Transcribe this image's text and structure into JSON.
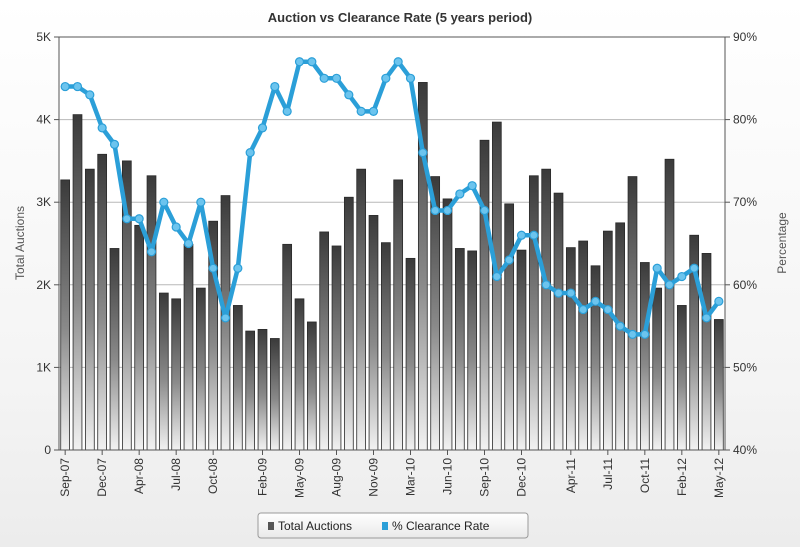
{
  "chart_data": {
    "type": "bar",
    "title": "Auction vs Clearance Rate (5 years period)",
    "ylabel": "Total Auctions",
    "y2label": "Percentage",
    "ylim": [
      0,
      5000
    ],
    "y2lim": [
      40,
      90
    ],
    "y_ticks": [
      "0",
      "1K",
      "2K",
      "3K",
      "4K",
      "5K"
    ],
    "y2_ticks": [
      "40%",
      "50%",
      "60%",
      "70%",
      "80%",
      "90%"
    ],
    "x_tick_labels": [
      "Sep-07",
      "Dec-07",
      "Apr-08",
      "Jul-08",
      "Oct-08",
      "Feb-09",
      "May-09",
      "Aug-09",
      "Nov-09",
      "Mar-10",
      "Jun-10",
      "Sep-10",
      "Dec-10",
      "Apr-11",
      "Jul-11",
      "Oct-11",
      "Feb-12",
      "May-12"
    ],
    "grid": true,
    "legend_position": "bottom",
    "series": [
      {
        "name": "Total Auctions",
        "type": "bar",
        "axis": "left",
        "color": "#555555",
        "values": [
          3270,
          4060,
          3400,
          3580,
          2440,
          3500,
          2720,
          3320,
          1900,
          1830,
          2490,
          1960,
          2770,
          3080,
          1750,
          1440,
          1460,
          1350,
          2490,
          1830,
          1550,
          2640,
          2470,
          3060,
          3400,
          2840,
          2510,
          3270,
          2320,
          4450,
          3310,
          3040,
          2440,
          2410,
          3750,
          3970,
          2980,
          2420,
          3320,
          3400,
          3110,
          2450,
          2530,
          2230,
          2650,
          2750,
          3310,
          2270,
          1960,
          3520,
          1750,
          2600,
          2380,
          1580
        ]
      },
      {
        "name": "% Clearance Rate",
        "type": "line",
        "axis": "right",
        "color": "#2b9fd8",
        "values": [
          84,
          84,
          83,
          79,
          77,
          68,
          68,
          64,
          70,
          67,
          65,
          70,
          62,
          56,
          62,
          76,
          79,
          84,
          81,
          87,
          87,
          85,
          85,
          83,
          81,
          81,
          85,
          87,
          85,
          76,
          69,
          69,
          71,
          72,
          69,
          61,
          63,
          66,
          66,
          60,
          59,
          59,
          57,
          58,
          57,
          55,
          54,
          54,
          62,
          60,
          61,
          62,
          56,
          58
        ]
      }
    ]
  }
}
